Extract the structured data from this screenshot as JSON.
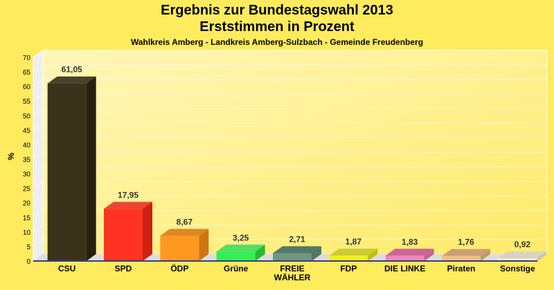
{
  "title": "Ergebnis zur Bundestagswahl 2013",
  "subtitle": "Erststimmen in Prozent",
  "subsubtitle": "Wahlkreis Amberg - Landkreis Amberg-Sulzbach - Gemeinde Freudenberg",
  "chart_data": {
    "type": "bar",
    "ylabel": "%",
    "xlabel": "",
    "ylim": [
      0,
      70
    ],
    "yticks": [
      0,
      5,
      10,
      15,
      20,
      25,
      30,
      35,
      40,
      45,
      50,
      55,
      60,
      65,
      70
    ],
    "grid": true,
    "categories": [
      "CSU",
      "SPD",
      "ÖDP",
      "Grüne",
      "FREIE WÄHLER",
      "FDP",
      "DIE LINKE",
      "Piraten",
      "Sonstige"
    ],
    "category_lines": [
      [
        "CSU"
      ],
      [
        "SPD"
      ],
      [
        "ÖDP"
      ],
      [
        "Grüne"
      ],
      [
        "FREIE",
        "WÄHLER"
      ],
      [
        "FDP"
      ],
      [
        "DIE LINKE"
      ],
      [
        "Piraten"
      ],
      [
        "Sonstige"
      ]
    ],
    "values": [
      61.05,
      17.95,
      8.67,
      3.25,
      2.71,
      1.87,
      1.83,
      1.76,
      0.92
    ],
    "value_labels": [
      "61,05",
      "17,95",
      "8,67",
      "3,25",
      "2,71",
      "1,87",
      "1,83",
      "1,76",
      "0,92"
    ],
    "colors": [
      "#3a321a",
      "#ff3322",
      "#ff9922",
      "#33ee55",
      "#6f9684",
      "#eeee22",
      "#ee88bb",
      "#eec08a",
      "#f2eed8"
    ],
    "side_colors": [
      "#252010",
      "#cc2211",
      "#cc7711",
      "#22bb33",
      "#557466",
      "#c0c010",
      "#c06690",
      "#c09a66",
      "#c8c4a8"
    ],
    "top_colors": [
      "#4a4228",
      "#ee4433",
      "#dd8822",
      "#55dd66",
      "#4f7a66",
      "#cccc33",
      "#cc6699",
      "#cca070",
      "#d8d4c0"
    ],
    "baseline_color": "#3a3a7a"
  }
}
